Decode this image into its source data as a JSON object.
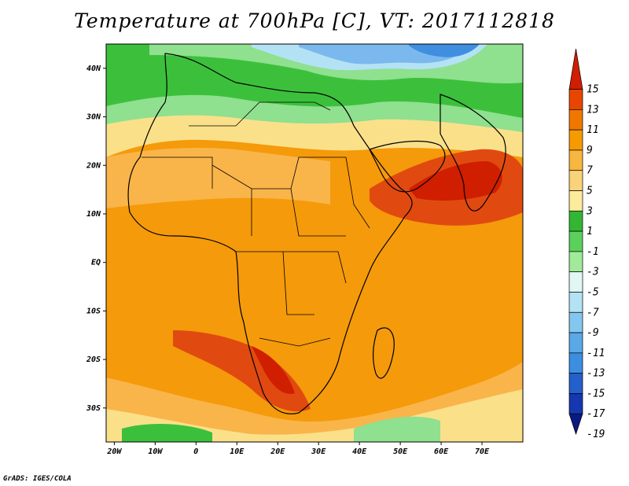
{
  "title": "Temperature at 700hPa [C], VT: 2017112818",
  "credit": "GrADS: IGES/COLA",
  "map": {
    "lon_ticks": [
      "20W",
      "10W",
      "0",
      "10E",
      "20E",
      "30E",
      "40E",
      "50E",
      "60E",
      "70E"
    ],
    "lat_ticks": [
      "40N",
      "30N",
      "20N",
      "10N",
      "EQ",
      "10S",
      "20S",
      "30S"
    ],
    "lon_range": [
      -22,
      80
    ],
    "lat_range": [
      -37,
      45
    ]
  },
  "colorbar": {
    "labels": [
      "15",
      "13",
      "11",
      "9",
      "7",
      "5",
      "3",
      "1",
      "-1",
      "-3",
      "-5",
      "-7",
      "-9",
      "-11",
      "-13",
      "-15",
      "-17",
      "-19"
    ],
    "colors": [
      "#d01e00",
      "#e84600",
      "#f07800",
      "#f59a00",
      "#f7b640",
      "#fad27a",
      "#fbeb9c",
      "#33b633",
      "#5bd15b",
      "#a0ea9a",
      "#e0f7f2",
      "#b4e2f5",
      "#84c7ee",
      "#5aa8e6",
      "#3c8fe0",
      "#2460cc",
      "#1538b0",
      "#0a1a80"
    ]
  },
  "field": {
    "colors": {
      "hot": "#e04a10",
      "warm": "#f59a0a",
      "mild": "#f9b54a",
      "cool": "#fbe08a",
      "green": "#3cc03c",
      "lightgreen": "#8fe08f",
      "blue": "#7ab8ee",
      "deepblue": "#3f8ee0"
    }
  }
}
